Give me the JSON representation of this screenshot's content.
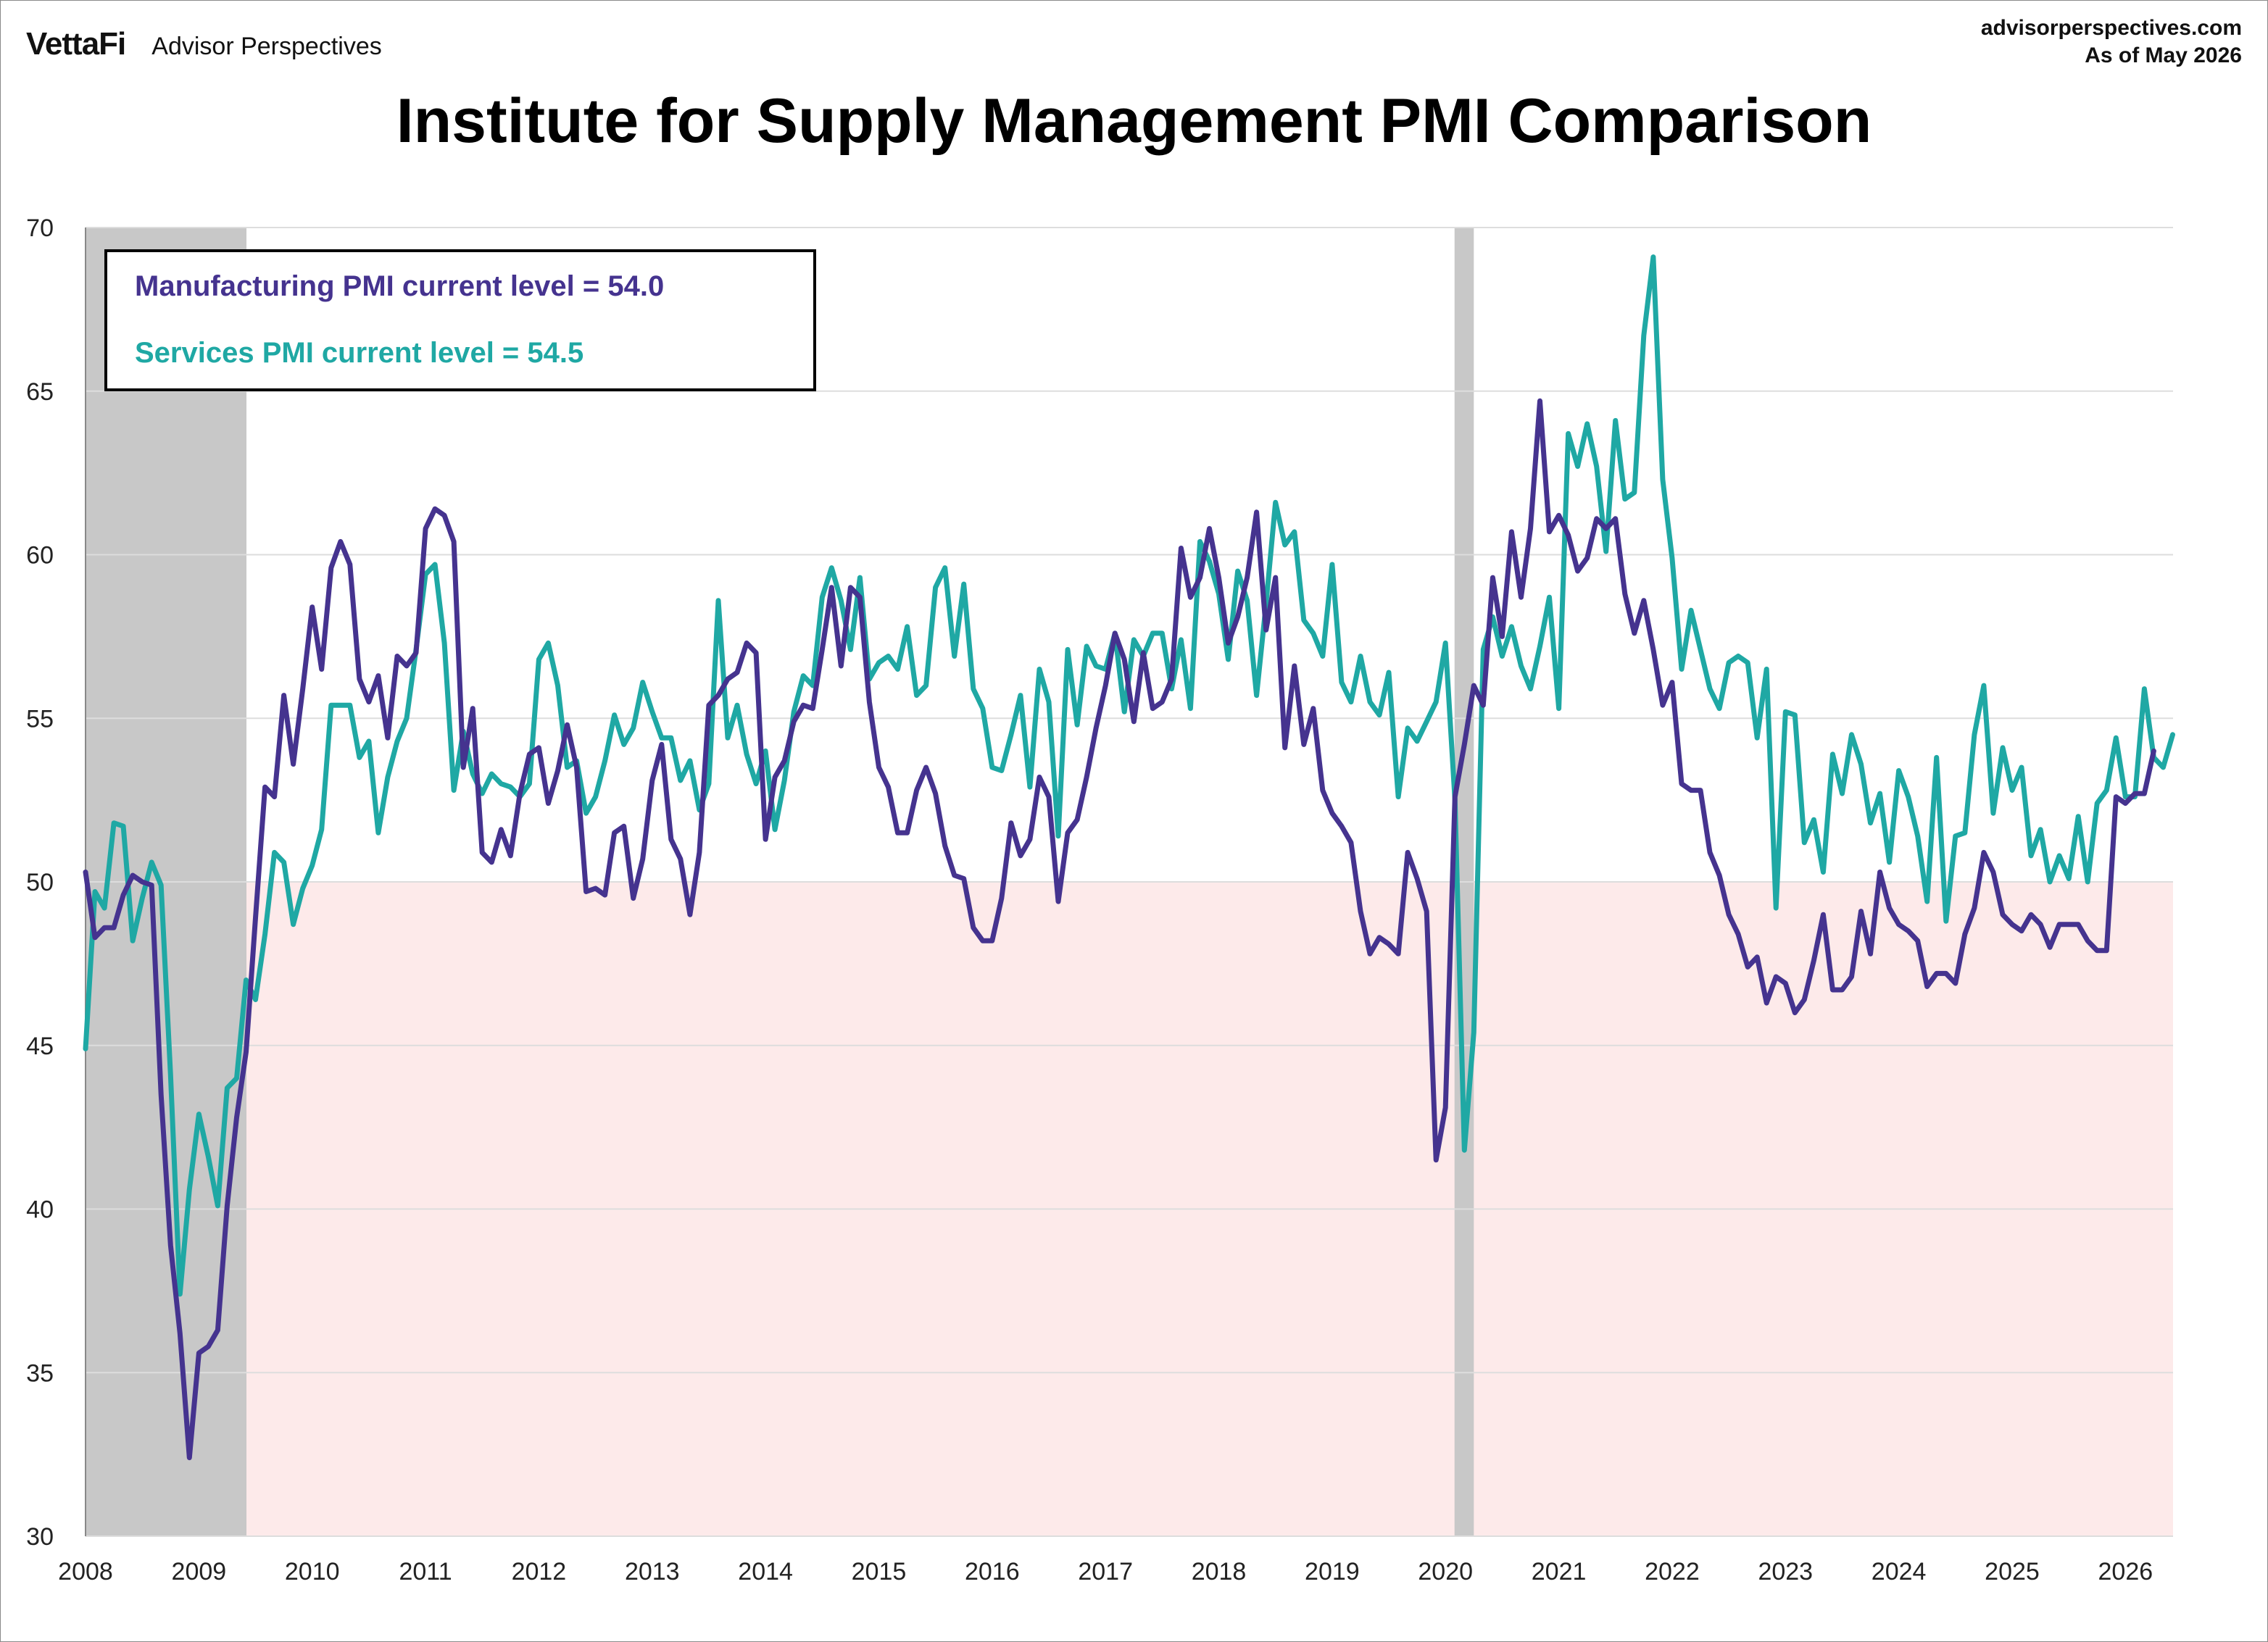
{
  "header": {
    "brand_logo": "VettaFi",
    "brand_name": "Advisor Perspectives",
    "site": "advisorperspectives.com",
    "as_of": "As of May 2026"
  },
  "colors": {
    "manufacturing": "#45338f",
    "services": "#1fa8a4",
    "recession": "#c8c8c8",
    "contraction": "#fdeaea",
    "grid": "#dddddd"
  },
  "chart_data": {
    "type": "line",
    "title": "Institute for Supply Management PMI Comparison",
    "xlabel": "",
    "ylabel": "",
    "xlim": [
      2008.0,
      2026.42
    ],
    "ylim": [
      30,
      70
    ],
    "yticks": [
      30,
      35,
      40,
      45,
      50,
      55,
      60,
      65,
      70
    ],
    "xticks": [
      "2008",
      "2009",
      "2010",
      "2011",
      "2012",
      "2013",
      "2014",
      "2015",
      "2016",
      "2017",
      "2018",
      "2019",
      "2020",
      "2021",
      "2022",
      "2023",
      "2024",
      "2025",
      "2026"
    ],
    "grid": true,
    "contraction_zone": [
      30,
      50
    ],
    "recessions": [
      [
        2008.0,
        2009.42
      ],
      [
        2020.08,
        2020.25
      ]
    ],
    "legend": [
      {
        "text": "Manufacturing PMI current level = 54.0",
        "series": "manufacturing"
      },
      {
        "text": "Services PMI current level = 54.5",
        "series": "services"
      }
    ],
    "legend_position": "top-left",
    "start": "2008-01",
    "series": [
      {
        "key": "manufacturing",
        "values": [
          50.3,
          48.3,
          48.6,
          48.6,
          49.6,
          50.2,
          50.0,
          49.9,
          43.5,
          38.9,
          36.2,
          32.4,
          35.6,
          35.8,
          36.3,
          40.1,
          42.8,
          44.8,
          48.9,
          52.9,
          52.6,
          55.7,
          53.6,
          55.9,
          58.4,
          56.5,
          59.6,
          60.4,
          59.7,
          56.2,
          55.5,
          56.3,
          54.4,
          56.9,
          56.6,
          57.0,
          60.8,
          61.4,
          61.2,
          60.4,
          53.5,
          55.3,
          50.9,
          50.6,
          51.6,
          50.8,
          52.7,
          53.9,
          54.1,
          52.4,
          53.4,
          54.8,
          53.5,
          49.7,
          49.8,
          49.6,
          51.5,
          51.7,
          49.5,
          50.7,
          53.1,
          54.2,
          51.3,
          50.7,
          49.0,
          50.9,
          55.4,
          55.7,
          56.2,
          56.4,
          57.3,
          57.0,
          51.3,
          53.2,
          53.7,
          54.9,
          55.4,
          55.3,
          57.1,
          59.0,
          56.6,
          59.0,
          58.7,
          55.5,
          53.5,
          52.9,
          51.5,
          51.5,
          52.8,
          53.5,
          52.7,
          51.1,
          50.2,
          50.1,
          48.6,
          48.2,
          48.2,
          49.5,
          51.8,
          50.8,
          51.3,
          53.2,
          52.6,
          49.4,
          51.5,
          51.9,
          53.2,
          54.7,
          56.0,
          57.6,
          56.8,
          54.9,
          57.0,
          55.3,
          55.5,
          56.2,
          60.2,
          58.7,
          59.3,
          60.8,
          59.3,
          57.3,
          58.1,
          59.3,
          61.3,
          57.7,
          59.3,
          54.1,
          56.6,
          54.2,
          55.3,
          52.8,
          52.1,
          51.7,
          51.2,
          49.1,
          47.8,
          48.3,
          48.1,
          47.8,
          50.9,
          50.1,
          49.1,
          41.5,
          43.1,
          52.6,
          54.2,
          56.0,
          55.4,
          59.3,
          57.5,
          60.7,
          58.7,
          60.8,
          64.7,
          60.7,
          61.2,
          60.6,
          59.5,
          59.9,
          61.1,
          60.8,
          61.1,
          58.8,
          57.6,
          58.6,
          57.1,
          55.4,
          56.1,
          53.0,
          52.8,
          52.8,
          50.9,
          50.2,
          49.0,
          48.4,
          47.4,
          47.7,
          46.3,
          47.1,
          46.9,
          46.0,
          46.4,
          47.6,
          49.0,
          46.7,
          46.7,
          47.1,
          49.1,
          47.8,
          50.3,
          49.2,
          48.7,
          48.5,
          48.2,
          46.8,
          47.2,
          47.2,
          46.9,
          48.4,
          49.2,
          50.9,
          50.3,
          49.0,
          48.7,
          48.5,
          49.0,
          48.7,
          48.0,
          48.7,
          48.7,
          48.7,
          48.2,
          47.9,
          47.9,
          52.6,
          52.4,
          52.7,
          52.7,
          54.0
        ]
      },
      {
        "key": "services",
        "values": [
          44.9,
          49.7,
          49.2,
          51.8,
          51.7,
          48.2,
          49.5,
          50.6,
          49.9,
          44.1,
          37.4,
          40.6,
          42.9,
          41.6,
          40.1,
          43.7,
          44.0,
          47.0,
          46.4,
          48.4,
          50.9,
          50.6,
          48.7,
          49.8,
          50.5,
          51.6,
          55.4,
          55.4,
          55.4,
          53.8,
          54.3,
          51.5,
          53.2,
          54.3,
          55.0,
          57.1,
          59.4,
          59.7,
          57.3,
          52.8,
          54.6,
          53.3,
          52.7,
          53.3,
          53.0,
          52.9,
          52.6,
          53.0,
          56.8,
          57.3,
          56.0,
          53.5,
          53.7,
          52.1,
          52.6,
          53.7,
          55.1,
          54.2,
          54.7,
          56.1,
          55.2,
          54.4,
          54.4,
          53.1,
          53.7,
          52.2,
          53.0,
          58.6,
          54.4,
          55.4,
          53.9,
          53.0,
          54.0,
          51.6,
          53.1,
          55.2,
          56.3,
          56.0,
          58.7,
          59.6,
          58.6,
          57.1,
          59.3,
          56.2,
          56.7,
          56.9,
          56.5,
          57.8,
          55.7,
          56.0,
          59.0,
          59.6,
          56.9,
          59.1,
          55.9,
          55.3,
          53.5,
          53.4,
          54.5,
          55.7,
          52.9,
          56.5,
          55.5,
          51.4,
          57.1,
          54.8,
          57.2,
          56.6,
          56.5,
          57.6,
          55.2,
          57.4,
          56.9,
          57.6,
          57.6,
          55.9,
          57.4,
          55.3,
          60.4,
          59.8,
          58.8,
          56.8,
          59.5,
          58.6,
          55.7,
          58.5,
          61.6,
          60.3,
          60.7,
          58.0,
          57.6,
          56.9,
          59.7,
          56.1,
          55.5,
          56.9,
          55.5,
          55.1,
          56.4,
          52.6,
          54.7,
          54.3,
          54.9,
          55.5,
          57.3,
          52.5,
          41.8,
          45.4,
          57.1,
          58.1,
          56.9,
          57.8,
          56.6,
          55.9,
          57.2,
          58.7,
          55.3,
          63.7,
          62.7,
          64.0,
          62.7,
          60.1,
          64.1,
          61.7,
          61.9,
          66.7,
          69.1,
          62.3,
          59.9,
          56.5,
          58.3,
          57.1,
          55.9,
          55.3,
          56.7,
          56.9,
          56.7,
          54.4,
          56.5,
          49.2,
          55.2,
          55.1,
          51.2,
          51.9,
          50.3,
          53.9,
          52.7,
          54.5,
          53.6,
          51.8,
          52.7,
          50.6,
          53.4,
          52.6,
          51.4,
          49.4,
          53.8,
          48.8,
          51.4,
          51.5,
          54.5,
          56.0,
          52.1,
          54.1,
          52.8,
          53.5,
          50.8,
          51.6,
          50.0,
          50.8,
          50.1,
          52.0,
          50.0,
          52.4,
          52.8,
          54.4,
          52.6,
          52.6,
          55.9,
          53.8,
          53.5,
          54.5
        ]
      }
    ]
  }
}
